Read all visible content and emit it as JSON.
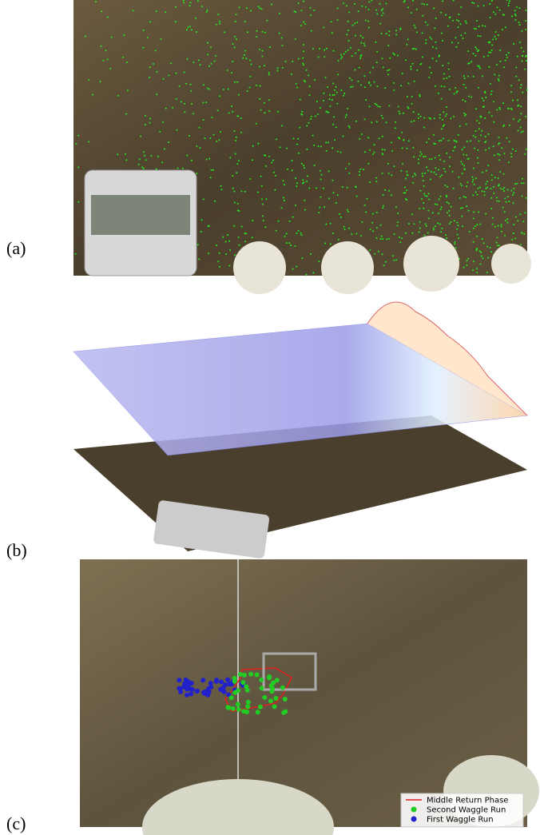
{
  "panels": [
    {
      "label": "(a)"
    },
    {
      "label": "(b)"
    },
    {
      "label": "(c)",
      "legend": [
        {
          "label": "Middle Return Phase",
          "color": "#e02020",
          "kind": "line"
        },
        {
          "label": "Second Waggle Run",
          "color": "#22cc22",
          "kind": "dot"
        },
        {
          "label": "First Waggle Run",
          "color": "#2222cc",
          "kind": "dot"
        }
      ]
    }
  ]
}
